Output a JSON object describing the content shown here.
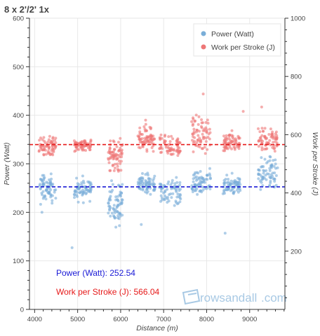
{
  "chart_data": {
    "type": "scatter",
    "title": "8 x 2'/2' 1x",
    "xlabel": "Distance (m)",
    "ylabel": "Power (Watt)",
    "y2label": "Work per Stroke (J)",
    "xlim": [
      3880,
      9820
    ],
    "ylim": [
      0,
      600
    ],
    "y2lim": [
      0,
      1000
    ],
    "x_ticks": [
      4000,
      5000,
      6000,
      7000,
      8000,
      9000
    ],
    "y_ticks": [
      0,
      100,
      200,
      300,
      400,
      500,
      600
    ],
    "y2_ticks": [
      200,
      400,
      600,
      800,
      1000
    ],
    "grid": true,
    "legend_position": "top-right",
    "legend": [
      {
        "label": "Power (Watt)",
        "color": "#7aaed8"
      },
      {
        "label": "Work per Stroke (J)",
        "color": "#ee7777"
      }
    ],
    "reference_lines": [
      {
        "axis": "y",
        "value": 252.54,
        "color": "#1a1ad6"
      },
      {
        "axis": "y2",
        "value": 566.04,
        "color": "#e61919"
      }
    ],
    "annotations": [
      {
        "label": "Power (Watt)",
        "value": "252.54",
        "color": "#1a1ad6"
      },
      {
        "label": "Work per Stroke (J)",
        "value": "566.04",
        "color": "#e61919"
      }
    ],
    "intervals": [
      {
        "x_start": 4100,
        "x_end": 4500,
        "power_mean": 248,
        "power_spread": 20,
        "work_mean": 562,
        "work_spread": 22
      },
      {
        "x_start": 4920,
        "x_end": 5320,
        "power_mean": 248,
        "power_spread": 16,
        "work_mean": 563,
        "work_spread": 14
      },
      {
        "x_start": 5700,
        "x_end": 6050,
        "power_mean": 220,
        "power_spread": 28,
        "work_mean": 530,
        "work_spread": 35
      },
      {
        "x_start": 6400,
        "x_end": 6800,
        "power_mean": 258,
        "power_spread": 14,
        "work_mean": 585,
        "work_spread": 28
      },
      {
        "x_start": 6900,
        "x_end": 7400,
        "power_mean": 240,
        "power_spread": 20,
        "work_mean": 555,
        "work_spread": 28
      },
      {
        "x_start": 7650,
        "x_end": 8100,
        "power_mean": 262,
        "power_spread": 20,
        "work_mean": 600,
        "work_spread": 45
      },
      {
        "x_start": 8380,
        "x_end": 8780,
        "power_mean": 255,
        "power_spread": 14,
        "work_mean": 575,
        "work_spread": 22
      },
      {
        "x_start": 9200,
        "x_end": 9650,
        "power_mean": 280,
        "power_spread": 22,
        "work_mean": 590,
        "work_spread": 35
      }
    ],
    "outliers": [
      {
        "series": "power",
        "x": 4870,
        "y": 127
      },
      {
        "series": "power",
        "x": 8430,
        "y": 157
      },
      {
        "series": "power",
        "x": 6480,
        "y": 175
      },
      {
        "series": "power",
        "x": 4170,
        "y": 200
      },
      {
        "series": "work",
        "x": 7920,
        "y": 740
      },
      {
        "series": "work",
        "x": 9280,
        "y": 695
      },
      {
        "series": "work",
        "x": 6580,
        "y": 650
      },
      {
        "series": "work",
        "x": 8850,
        "y": 680
      }
    ]
  },
  "brand": {
    "logo_text": "rowsandall",
    "domain_text": ".com"
  }
}
